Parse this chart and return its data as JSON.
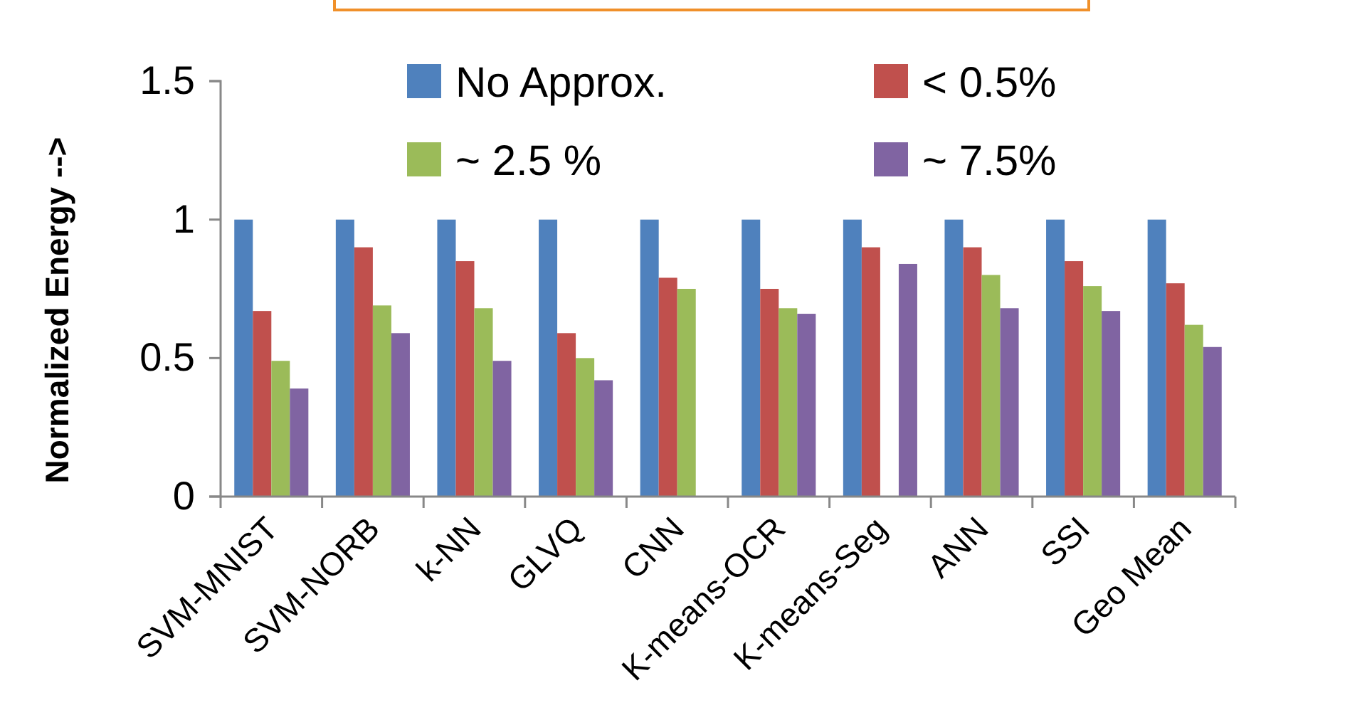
{
  "chart_data": {
    "type": "bar",
    "ylabel": "Normalized Energy -->",
    "categories": [
      "SVM-MNIST",
      "SVM-NORB",
      "k-NN",
      "GLVQ",
      "CNN",
      "K-means-OCR",
      "K-means-Seg",
      "ANN",
      "SSI",
      "Geo Mean"
    ],
    "series": [
      {
        "name": "No Approx.",
        "color": "#4f81bd",
        "values": [
          1,
          1,
          1,
          1,
          1,
          1,
          1,
          1,
          1,
          1
        ]
      },
      {
        "name": "< 0.5%",
        "color": "#c0504d",
        "values": [
          0.67,
          0.9,
          0.85,
          0.59,
          0.79,
          0.75,
          0.9,
          0.9,
          0.85,
          0.77
        ]
      },
      {
        "name": "~ 2.5 %",
        "color": "#9bbb59",
        "values": [
          0.49,
          0.69,
          0.68,
          0.5,
          0.75,
          0.68,
          null,
          0.8,
          0.76,
          0.62
        ]
      },
      {
        "name": "~ 7.5%",
        "color": "#8064a2",
        "values": [
          0.39,
          0.59,
          0.49,
          0.42,
          null,
          0.66,
          0.84,
          0.68,
          0.67,
          0.54
        ]
      }
    ],
    "ylim": [
      0,
      1.5
    ],
    "yticks": [
      0,
      {
        "value": 0.5,
        "label": "0.5"
      },
      1,
      1.5
    ],
    "grid": false,
    "legend": "top"
  }
}
